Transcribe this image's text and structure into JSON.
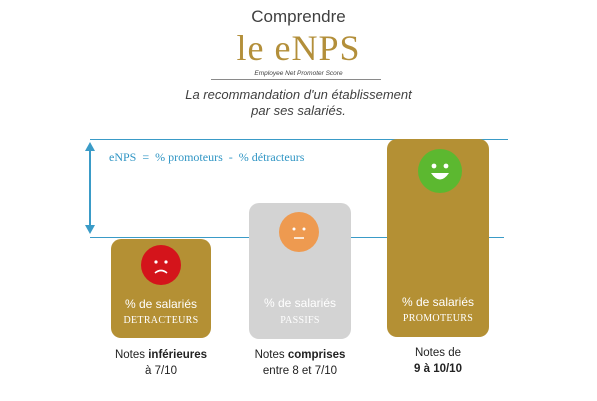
{
  "header": {
    "line1": "Comprendre",
    "title": "le eNPS",
    "subtitle": "Employee Net Promoter Score",
    "tagline_1": "La recommandation d'un établissement",
    "tagline_2": "par ses salariés."
  },
  "formula": "eNPS  =  % promoteurs  -  % détracteurs",
  "groups": [
    {
      "id": "detracteurs",
      "label_1": "% de salariés",
      "label_2": "DETRACTEURS",
      "note_normal": "Notes ",
      "note_bold": "inférieures",
      "note_line2": "à 7/10",
      "face": "sad-face-icon",
      "color": "#d4141b"
    },
    {
      "id": "passifs",
      "label_1": "% de salariés",
      "label_2": "PASSIFS",
      "note_normal": "Notes ",
      "note_bold": "comprises",
      "note_line2": "entre 8 et 7/10",
      "face": "neutral-face-icon",
      "color": "#ee9a50"
    },
    {
      "id": "promoteurs",
      "label_1": "% de salariés",
      "label_2": "PROMOTEURS",
      "note_line1": "Notes de",
      "note_line2": "9 à 10/10",
      "face": "happy-face-icon",
      "color": "#5cb830"
    }
  ],
  "colors": {
    "gold": "#b49034",
    "grey": "#d3d3d3",
    "line": "#3a9bc7"
  }
}
